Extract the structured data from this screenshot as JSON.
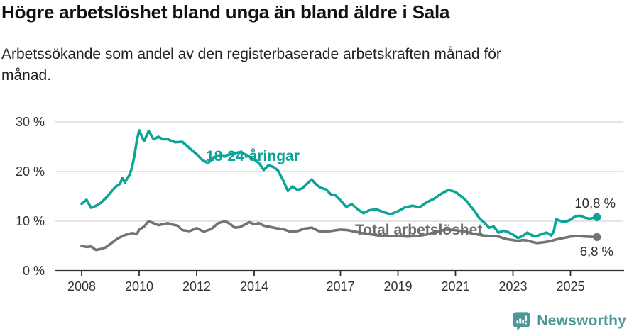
{
  "header": {
    "title": "Högre arbetslöshet bland unga än bland äldre i Sala",
    "subtitle": "Arbetssökande som andel av den registerbaserade arbetskraften månad för\nmånad."
  },
  "chart_data": {
    "type": "line",
    "title": "Högre arbetslöshet bland unga än bland äldre i Sala",
    "subtitle": "Arbetssökande som andel av den registerbaserade arbetskraften månad för månad.",
    "grid": true,
    "legend_position": "inline-labels",
    "x_axis": {
      "ticks": [
        2008,
        2010,
        2012,
        2014,
        2017,
        2019,
        2021,
        2023,
        2025
      ],
      "tick_labels": [
        "2008",
        "2010",
        "2012",
        "2014",
        "2017",
        "2019",
        "2021",
        "2023",
        "2025"
      ],
      "range": [
        2007.1,
        2026.3
      ]
    },
    "y_axis": {
      "ticks": [
        0,
        10,
        20,
        30
      ],
      "tick_labels": [
        "0 %",
        "10 %",
        "20 %",
        "30 %"
      ],
      "range": [
        0,
        31
      ]
    },
    "series": [
      {
        "name": "18-24-åringar",
        "color": "#0ca496",
        "end_label": "10,8 %",
        "end_value": 10.8,
        "points": [
          [
            2008.0,
            13.5
          ],
          [
            2008.17,
            14.3
          ],
          [
            2008.33,
            12.7
          ],
          [
            2008.5,
            13.1
          ],
          [
            2008.67,
            13.7
          ],
          [
            2008.83,
            14.6
          ],
          [
            2009.0,
            15.7
          ],
          [
            2009.17,
            16.9
          ],
          [
            2009.33,
            17.5
          ],
          [
            2009.42,
            18.7
          ],
          [
            2009.5,
            17.8
          ],
          [
            2009.67,
            19.4
          ],
          [
            2009.75,
            20.8
          ],
          [
            2009.83,
            23.0
          ],
          [
            2009.92,
            26.3
          ],
          [
            2010.0,
            28.3
          ],
          [
            2010.17,
            26.1
          ],
          [
            2010.33,
            28.2
          ],
          [
            2010.5,
            26.5
          ],
          [
            2010.67,
            27.0
          ],
          [
            2010.83,
            26.5
          ],
          [
            2011.0,
            26.5
          ],
          [
            2011.25,
            25.9
          ],
          [
            2011.5,
            26.0
          ],
          [
            2011.75,
            24.7
          ],
          [
            2012.0,
            23.5
          ],
          [
            2012.2,
            22.3
          ],
          [
            2012.4,
            21.7
          ],
          [
            2012.6,
            22.9
          ],
          [
            2012.8,
            23.3
          ],
          [
            2013.0,
            23.2
          ],
          [
            2013.25,
            23.6
          ],
          [
            2013.5,
            23.9
          ],
          [
            2013.75,
            23.3
          ],
          [
            2014.0,
            22.4
          ],
          [
            2014.17,
            21.7
          ],
          [
            2014.33,
            20.3
          ],
          [
            2014.5,
            21.3
          ],
          [
            2014.67,
            20.9
          ],
          [
            2014.83,
            20.2
          ],
          [
            2015.0,
            18.3
          ],
          [
            2015.17,
            16.1
          ],
          [
            2015.33,
            17.0
          ],
          [
            2015.5,
            16.3
          ],
          [
            2015.67,
            16.6
          ],
          [
            2015.83,
            17.5
          ],
          [
            2016.0,
            18.4
          ],
          [
            2016.17,
            17.3
          ],
          [
            2016.33,
            16.7
          ],
          [
            2016.5,
            16.4
          ],
          [
            2016.67,
            15.4
          ],
          [
            2016.83,
            15.2
          ],
          [
            2017.0,
            14.2
          ],
          [
            2017.2,
            12.9
          ],
          [
            2017.4,
            13.4
          ],
          [
            2017.6,
            12.4
          ],
          [
            2017.8,
            11.6
          ],
          [
            2018.0,
            12.2
          ],
          [
            2018.25,
            12.4
          ],
          [
            2018.5,
            11.8
          ],
          [
            2018.75,
            11.4
          ],
          [
            2019.0,
            12.0
          ],
          [
            2019.25,
            12.8
          ],
          [
            2019.5,
            13.1
          ],
          [
            2019.75,
            12.8
          ],
          [
            2020.0,
            13.8
          ],
          [
            2020.25,
            14.5
          ],
          [
            2020.5,
            15.5
          ],
          [
            2020.75,
            16.3
          ],
          [
            2021.0,
            15.9
          ],
          [
            2021.17,
            15.1
          ],
          [
            2021.33,
            14.4
          ],
          [
            2021.5,
            13.2
          ],
          [
            2021.67,
            12.0
          ],
          [
            2021.83,
            10.6
          ],
          [
            2022.0,
            9.7
          ],
          [
            2022.17,
            8.7
          ],
          [
            2022.33,
            8.9
          ],
          [
            2022.5,
            7.7
          ],
          [
            2022.67,
            8.1
          ],
          [
            2022.83,
            7.8
          ],
          [
            2023.0,
            7.3
          ],
          [
            2023.17,
            6.6
          ],
          [
            2023.33,
            7.0
          ],
          [
            2023.5,
            7.7
          ],
          [
            2023.67,
            7.1
          ],
          [
            2023.83,
            7.0
          ],
          [
            2024.0,
            7.4
          ],
          [
            2024.17,
            7.7
          ],
          [
            2024.33,
            7.1
          ],
          [
            2024.42,
            8.0
          ],
          [
            2024.5,
            10.4
          ],
          [
            2024.67,
            10.0
          ],
          [
            2024.83,
            9.9
          ],
          [
            2025.0,
            10.3
          ],
          [
            2025.17,
            11.0
          ],
          [
            2025.33,
            11.1
          ],
          [
            2025.5,
            10.7
          ],
          [
            2025.67,
            10.5
          ],
          [
            2025.92,
            10.8
          ]
        ]
      },
      {
        "name": "Total arbetslöshet",
        "color": "#737373",
        "end_label": "6,8 %",
        "end_value": 6.8,
        "points": [
          [
            2008.0,
            5.0
          ],
          [
            2008.17,
            4.8
          ],
          [
            2008.33,
            4.9
          ],
          [
            2008.5,
            4.2
          ],
          [
            2008.67,
            4.4
          ],
          [
            2008.83,
            4.7
          ],
          [
            2009.0,
            5.4
          ],
          [
            2009.25,
            6.5
          ],
          [
            2009.5,
            7.2
          ],
          [
            2009.75,
            7.6
          ],
          [
            2009.92,
            7.4
          ],
          [
            2010.0,
            8.3
          ],
          [
            2010.17,
            8.9
          ],
          [
            2010.33,
            10.0
          ],
          [
            2010.5,
            9.6
          ],
          [
            2010.67,
            9.2
          ],
          [
            2010.83,
            9.4
          ],
          [
            2011.0,
            9.6
          ],
          [
            2011.17,
            9.3
          ],
          [
            2011.33,
            9.1
          ],
          [
            2011.5,
            8.2
          ],
          [
            2011.75,
            8.0
          ],
          [
            2011.92,
            8.4
          ],
          [
            2012.0,
            8.6
          ],
          [
            2012.25,
            7.9
          ],
          [
            2012.5,
            8.4
          ],
          [
            2012.75,
            9.6
          ],
          [
            2013.0,
            10.0
          ],
          [
            2013.17,
            9.4
          ],
          [
            2013.33,
            8.7
          ],
          [
            2013.5,
            8.8
          ],
          [
            2013.67,
            9.3
          ],
          [
            2013.83,
            9.8
          ],
          [
            2014.0,
            9.4
          ],
          [
            2014.17,
            9.6
          ],
          [
            2014.33,
            9.1
          ],
          [
            2014.5,
            8.9
          ],
          [
            2014.75,
            8.6
          ],
          [
            2015.0,
            8.4
          ],
          [
            2015.25,
            7.9
          ],
          [
            2015.5,
            8.0
          ],
          [
            2015.75,
            8.5
          ],
          [
            2016.0,
            8.7
          ],
          [
            2016.25,
            8.0
          ],
          [
            2016.5,
            7.9
          ],
          [
            2016.75,
            8.1
          ],
          [
            2017.0,
            8.3
          ],
          [
            2017.25,
            8.2
          ],
          [
            2017.5,
            7.9
          ],
          [
            2017.75,
            7.6
          ],
          [
            2018.0,
            7.4
          ],
          [
            2018.33,
            7.1
          ],
          [
            2018.67,
            7.0
          ],
          [
            2019.0,
            7.0
          ],
          [
            2019.33,
            6.9
          ],
          [
            2019.67,
            7.0
          ],
          [
            2020.0,
            7.3
          ],
          [
            2020.33,
            7.9
          ],
          [
            2020.67,
            8.3
          ],
          [
            2021.0,
            8.2
          ],
          [
            2021.33,
            7.9
          ],
          [
            2021.67,
            7.4
          ],
          [
            2022.0,
            7.1
          ],
          [
            2022.25,
            7.0
          ],
          [
            2022.5,
            6.9
          ],
          [
            2022.75,
            6.4
          ],
          [
            2023.0,
            6.2
          ],
          [
            2023.17,
            6.0
          ],
          [
            2023.33,
            6.2
          ],
          [
            2023.5,
            6.1
          ],
          [
            2023.67,
            5.8
          ],
          [
            2023.83,
            5.6
          ],
          [
            2024.0,
            5.7
          ],
          [
            2024.25,
            5.9
          ],
          [
            2024.5,
            6.3
          ],
          [
            2024.75,
            6.6
          ],
          [
            2025.0,
            6.9
          ],
          [
            2025.25,
            7.0
          ],
          [
            2025.5,
            6.9
          ],
          [
            2025.92,
            6.8
          ]
        ]
      }
    ]
  },
  "colors": {
    "youth_line": "#0ca496",
    "total_line": "#737373",
    "total_label": "#6e6e6e",
    "axis_text": "#333333",
    "grid_line": "#dcdcdc",
    "axis_line": "#2e2e2e",
    "end_label_text": "#2e2e2e",
    "brand_teal": "#4a9898"
  },
  "footer": {
    "brand": "Newsworthy"
  }
}
